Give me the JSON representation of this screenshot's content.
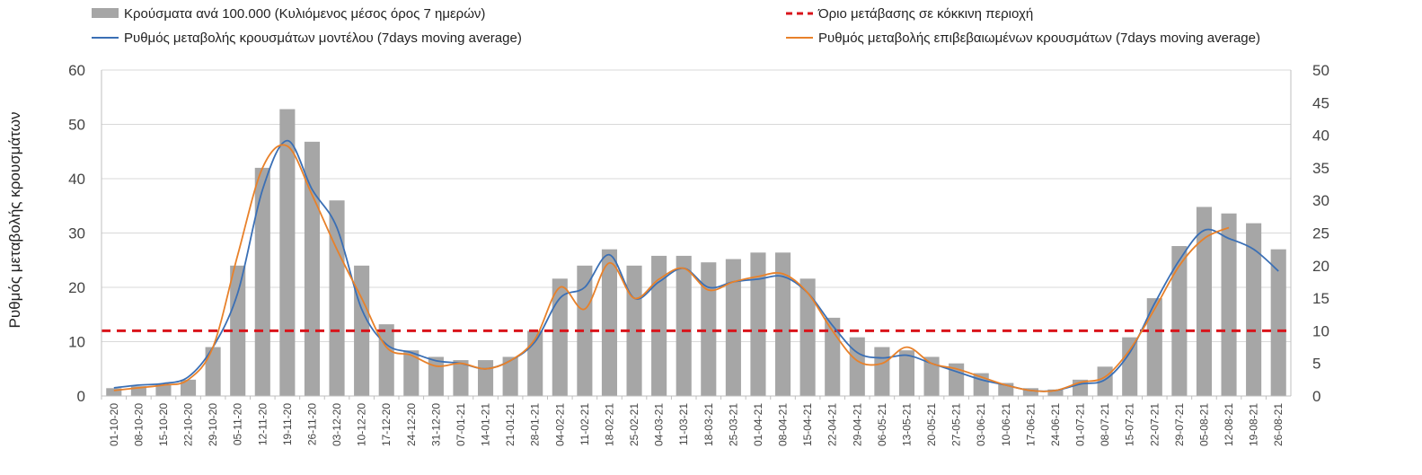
{
  "chart_data": {
    "type": "bar+line",
    "title": "",
    "ylabel": "Ρυθμός μεταβολής κρουσμάτων",
    "y_left": {
      "min": 0,
      "max": 60,
      "ticks": [
        "0",
        "10",
        "20",
        "30",
        "40",
        "50",
        "60"
      ]
    },
    "y_right": {
      "min": 0,
      "max": 50,
      "ticks": [
        "0",
        "5",
        "10",
        "15",
        "20",
        "25",
        "30",
        "35",
        "40",
        "45",
        "50"
      ]
    },
    "grid": true,
    "legend_position": "top",
    "legend": [
      {
        "key": "bars",
        "label": "Κρούσματα ανά 100.000 (Κυλιόμενος μέσος όρος 7 ημερών)",
        "kind": "bar",
        "color": "#a6a6a6"
      },
      {
        "key": "threshold",
        "label": "Όριο μετάβασης σε κόκκινη περιοχή",
        "kind": "dash",
        "color": "#d9141b"
      },
      {
        "key": "model",
        "label": "Ρυθμός μεταβολής κρουσμάτων μοντέλου (7days moving average)",
        "kind": "line",
        "color": "#3a6fb5"
      },
      {
        "key": "confirmed",
        "label": "Ρυθμός μεταβολής επιβεβαιωμένων κρουσμάτων (7days moving average)",
        "kind": "line",
        "color": "#e8812a"
      }
    ],
    "x_labels": [
      "01-10-20",
      "08-10-20",
      "15-10-20",
      "22-10-20",
      "29-10-20",
      "05-11-20",
      "12-11-20",
      "19-11-20",
      "26-11-20",
      "03-12-20",
      "10-12-20",
      "17-12-20",
      "24-12-20",
      "31-12-20",
      "07-01-21",
      "14-01-21",
      "21-01-21",
      "28-01-21",
      "04-02-21",
      "11-02-21",
      "18-02-21",
      "25-02-21",
      "04-03-21",
      "11-03-21",
      "18-03-21",
      "25-03-21",
      "01-04-21",
      "08-04-21",
      "15-04-21",
      "22-04-21",
      "29-04-21",
      "06-05-21",
      "13-05-21",
      "20-05-21",
      "27-05-21",
      "03-06-21",
      "10-06-21",
      "17-06-21",
      "24-06-21",
      "01-07-21",
      "08-07-21",
      "15-07-21",
      "22-07-21",
      "29-07-21",
      "05-08-21",
      "12-08-21",
      "19-08-21",
      "26-08-21"
    ],
    "threshold_value": 12,
    "series": [
      {
        "name": "Κρούσματα ανά 100.000 (Κυλιόμενος μέσος όρος 7 ημερών)",
        "axis": "right",
        "kind": "bar",
        "values": [
          1.2,
          1.5,
          1.8,
          2.5,
          7.5,
          20,
          35,
          44,
          39,
          30,
          20,
          11,
          7,
          6,
          5.5,
          5.5,
          6,
          10,
          18,
          20,
          22.5,
          20,
          21.5,
          21.5,
          20.5,
          21,
          22,
          22,
          18,
          12,
          9,
          7.5,
          7,
          6,
          5,
          3.5,
          2,
          1.2,
          1,
          2.5,
          4.5,
          9,
          15,
          23,
          29,
          28,
          26.5,
          22.5
        ]
      },
      {
        "name": "Ρυθμός μεταβολής κρουσμάτων μοντέλου (7days moving average)",
        "axis": "left",
        "kind": "line",
        "values": [
          1.5,
          2,
          2.3,
          3.5,
          9,
          19,
          38,
          47,
          38,
          31,
          16,
          9.5,
          8,
          6.5,
          6,
          5,
          6.5,
          10,
          18,
          20,
          26,
          18,
          21,
          23.5,
          20,
          21,
          21.5,
          22,
          19,
          13,
          8,
          7,
          7.5,
          6,
          4.5,
          3,
          2,
          1,
          1,
          2.2,
          3,
          8,
          17,
          25,
          30.5,
          29,
          27,
          23
        ]
      },
      {
        "name": "Ρυθμός μεταβολής επιβεβαιωμένων κρουσμάτων (7days moving average)",
        "axis": "left",
        "kind": "line",
        "values": [
          1,
          1.5,
          2,
          3,
          9,
          26,
          42,
          46,
          37,
          27,
          18,
          9,
          7.5,
          5.5,
          6,
          5,
          6.5,
          10.5,
          20,
          16,
          24.5,
          18,
          21.5,
          23.5,
          19.5,
          21,
          22,
          22.5,
          19,
          12,
          6.5,
          6,
          9,
          6,
          5,
          3.5,
          2,
          1,
          1,
          2.5,
          3.5,
          8.5,
          16,
          24,
          29,
          31
        ]
      }
    ]
  }
}
